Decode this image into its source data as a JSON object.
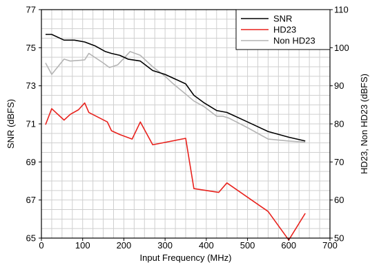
{
  "chart_data": {
    "type": "line",
    "xlabel": "Input Frequency (MHz)",
    "ylabel_left": "SNR (dBFS)",
    "ylabel_right": "HD23, Non HD23 (dBFS)",
    "xlim": [
      0,
      700
    ],
    "ylim_left": [
      65,
      77
    ],
    "ylim_right": [
      50,
      110
    ],
    "xticks": [
      0,
      100,
      200,
      300,
      400,
      500,
      600,
      700
    ],
    "yticks_left": [
      65,
      67,
      69,
      71,
      73,
      75,
      77
    ],
    "yticks_right": [
      50,
      60,
      70,
      80,
      90,
      100,
      110
    ],
    "grid": true,
    "legend_position": "top-right",
    "series": [
      {
        "name": "SNR",
        "axis": "left",
        "color": "#000000",
        "x": [
          10,
          25,
          55,
          80,
          105,
          130,
          155,
          170,
          190,
          210,
          240,
          270,
          300,
          330,
          350,
          370,
          395,
          425,
          450,
          500,
          550,
          600,
          640
        ],
        "y": [
          75.7,
          75.7,
          75.4,
          75.4,
          75.3,
          75.1,
          74.8,
          74.7,
          74.6,
          74.4,
          74.3,
          73.8,
          73.6,
          73.3,
          73.1,
          72.5,
          72.1,
          71.7,
          71.6,
          71.1,
          70.6,
          70.3,
          70.1
        ]
      },
      {
        "name": "HD23",
        "axis": "right",
        "color": "#e8211c",
        "x": [
          10,
          25,
          55,
          70,
          90,
          105,
          115,
          160,
          170,
          190,
          220,
          240,
          270,
          350,
          370,
          430,
          450,
          550,
          600,
          640
        ],
        "y": [
          79.8,
          84.0,
          81.0,
          82.5,
          83.7,
          85.5,
          83.0,
          80.5,
          78.2,
          77.2,
          76.0,
          80.5,
          74.5,
          76.2,
          63.0,
          62.0,
          64.5,
          57.0,
          49.5,
          56.5
        ]
      },
      {
        "name": "Non HD23",
        "axis": "right",
        "color": "#b4b4b4",
        "x": [
          10,
          25,
          55,
          70,
          95,
          105,
          115,
          150,
          165,
          185,
          200,
          215,
          240,
          270,
          300,
          320,
          350,
          370,
          395,
          425,
          440,
          455,
          500,
          550,
          600,
          640
        ],
        "y": [
          96.0,
          93.0,
          97.0,
          96.5,
          96.7,
          96.8,
          98.5,
          96.0,
          94.8,
          95.5,
          97.2,
          99.0,
          98.0,
          95.0,
          92.5,
          90.5,
          87.8,
          86.0,
          84.5,
          82.0,
          82.0,
          81.5,
          79.0,
          76.0,
          75.5,
          75.2
        ]
      }
    ]
  }
}
